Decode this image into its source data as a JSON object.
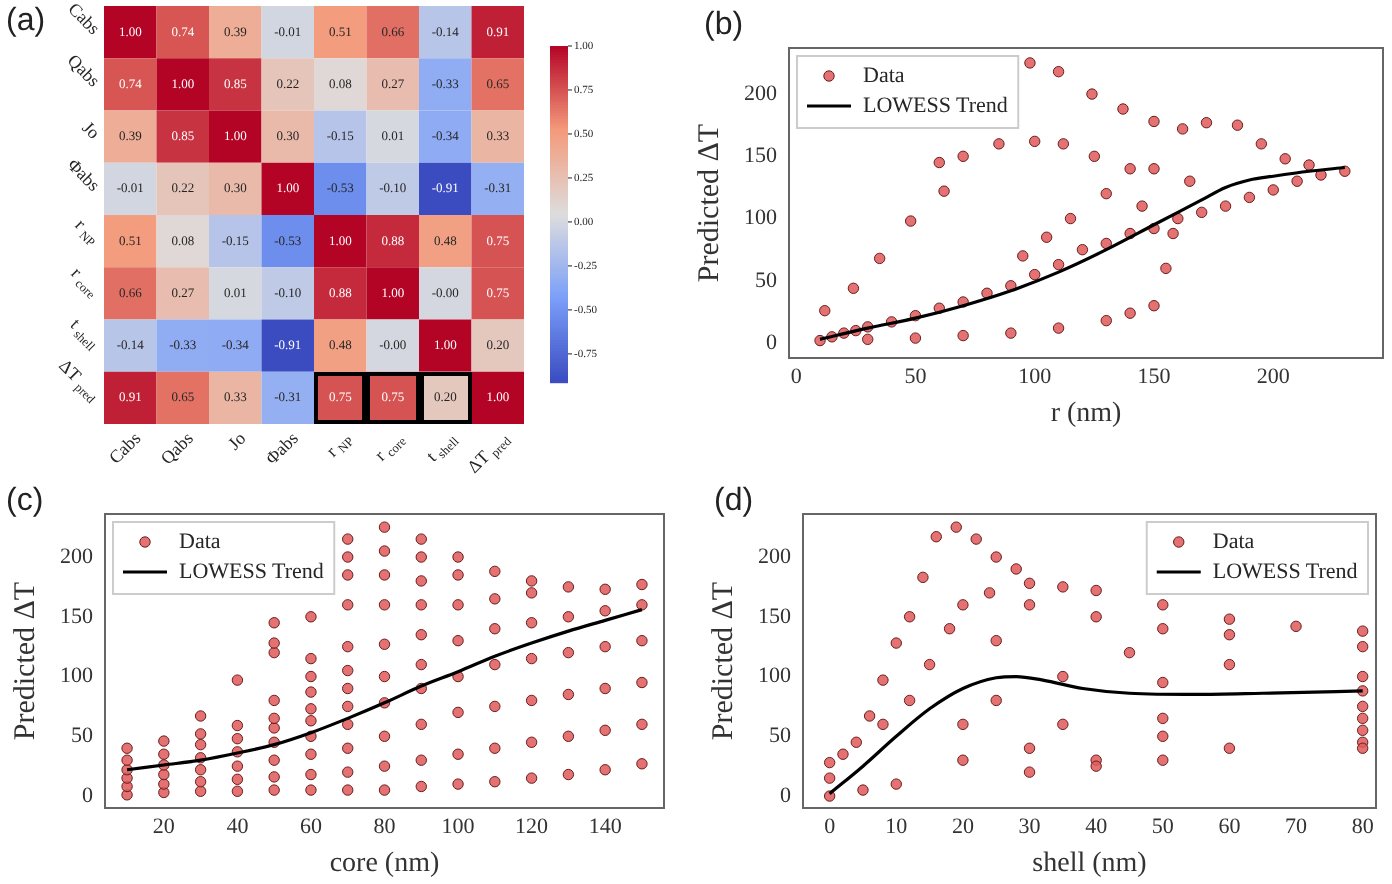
{
  "chart_data": [
    {
      "type": "heatmap",
      "annotations": [
        "(a)"
      ],
      "categories": [
        "Cabs",
        "Qabs",
        "Jo",
        "Φabs",
        "r$_{NP}$",
        "r$_{core}$",
        "t$_{shell}$",
        "ΔT$_{pred}$"
      ],
      "y_categories": [
        "Cabs",
        "Qabs",
        "Jo",
        "Φabs",
        "r$_{NP}$",
        "r$_{core}$",
        "t$_{shell}$",
        "ΔT$_{pred}$"
      ],
      "cells": [
        [
          1.0,
          0.74,
          0.39,
          -0.01,
          0.51,
          0.66,
          -0.14,
          0.91
        ],
        [
          0.74,
          1.0,
          0.85,
          0.22,
          0.08,
          0.27,
          -0.33,
          0.65
        ],
        [
          0.39,
          0.85,
          1.0,
          0.3,
          -0.15,
          0.01,
          -0.34,
          0.33
        ],
        [
          -0.01,
          0.22,
          0.3,
          1.0,
          -0.53,
          -0.1,
          -0.91,
          -0.31
        ],
        [
          0.51,
          0.08,
          -0.15,
          -0.53,
          1.0,
          0.88,
          0.48,
          0.75
        ],
        [
          0.66,
          0.27,
          0.01,
          -0.1,
          0.88,
          1.0,
          0.0,
          0.75
        ],
        [
          -0.14,
          -0.33,
          -0.34,
          -0.91,
          0.48,
          0.0,
          1.0,
          0.2
        ],
        [
          0.91,
          0.65,
          0.33,
          -0.31,
          0.75,
          0.75,
          0.2,
          1.0
        ]
      ],
      "cell_labels": [
        [
          "1.00",
          "0.74",
          "0.39",
          "-0.01",
          "0.51",
          "0.66",
          "-0.14",
          "0.91"
        ],
        [
          "0.74",
          "1.00",
          "0.85",
          "0.22",
          "0.08",
          "0.27",
          "-0.33",
          "0.65"
        ],
        [
          "0.39",
          "0.85",
          "1.00",
          "0.30",
          "-0.15",
          "0.01",
          "-0.34",
          "0.33"
        ],
        [
          "-0.01",
          "0.22",
          "0.30",
          "1.00",
          "-0.53",
          "-0.10",
          "-0.91",
          "-0.31"
        ],
        [
          "0.51",
          "0.08",
          "-0.15",
          "-0.53",
          "1.00",
          "0.88",
          "0.48",
          "0.75"
        ],
        [
          "0.66",
          "0.27",
          "0.01",
          "-0.10",
          "0.88",
          "1.00",
          "-0.00",
          "0.75"
        ],
        [
          "-0.14",
          "-0.33",
          "-0.34",
          "-0.91",
          "0.48",
          "-0.00",
          "1.00",
          "0.20"
        ],
        [
          "0.91",
          "0.65",
          "0.33",
          "-0.31",
          "0.75",
          "0.75",
          "0.20",
          "1.00"
        ]
      ],
      "clim": [
        -0.91,
        1
      ],
      "cticks": [
        {
          "value": 1,
          "label": "1.00"
        },
        {
          "value": 0.75,
          "label": "0.75"
        },
        {
          "value": 0.5,
          "label": "0.50"
        },
        {
          "value": 0.25,
          "label": "0.25"
        },
        {
          "value": 0,
          "label": "0.00"
        },
        {
          "value": -0.25,
          "label": "-0.25"
        },
        {
          "value": -0.5,
          "label": "-0.50"
        },
        {
          "value": -0.75,
          "label": "-0.75"
        }
      ]
    },
    {
      "type": "scatter",
      "annotations": [
        "(b)"
      ],
      "xlabel": "r (nm)",
      "ylabel": "Predicted ΔT",
      "xlim": [
        -3,
        246
      ],
      "ylim": [
        -12,
        237
      ],
      "xticks": [
        0,
        50,
        100,
        150,
        200
      ],
      "yticks": [
        0,
        50,
        100,
        150,
        200
      ],
      "legend": "top left",
      "series": [
        {
          "name": "Data",
          "marker": "circle",
          "color": "#e05c5c",
          "x": [
            10,
            15,
            20,
            25,
            30,
            40,
            50,
            60,
            70,
            80,
            90,
            100,
            110,
            120,
            130,
            140,
            150,
            160,
            170,
            180,
            190,
            200,
            210,
            220,
            230,
            98,
            110,
            124,
            137,
            150,
            162,
            172,
            185,
            195,
            205,
            215,
            12,
            24,
            35,
            48,
            60,
            62,
            70,
            85,
            100,
            112,
            125,
            140,
            150,
            165,
            115,
            105,
            95,
            130,
            145,
            30,
            50,
            70,
            90,
            110,
            130,
            140,
            150,
            155,
            158
          ],
          "values": [
            2,
            5,
            8,
            10,
            13,
            17,
            22,
            28,
            33,
            40,
            46,
            55,
            63,
            75,
            80,
            88,
            92,
            100,
            105,
            110,
            117,
            123,
            130,
            135,
            138,
            225,
            218,
            200,
            188,
            178,
            172,
            177,
            175,
            160,
            148,
            143,
            26,
            44,
            68,
            98,
            145,
            122,
            150,
            160,
            162,
            160,
            150,
            140,
            140,
            130,
            100,
            85,
            70,
            120,
            110,
            3,
            4,
            6,
            8,
            12,
            18,
            24,
            30,
            60,
            88
          ]
        },
        {
          "name": "LOWESS Trend",
          "type": "line",
          "color": "#000000",
          "x": [
            10,
            30,
            50,
            70,
            90,
            110,
            130,
            150,
            160,
            170,
            180,
            190,
            200,
            215,
            230
          ],
          "values": [
            3,
            12,
            20,
            30,
            42,
            57,
            75,
            95,
            105,
            115,
            125,
            131,
            134,
            138,
            141
          ]
        }
      ]
    },
    {
      "type": "scatter",
      "annotations": [
        "(c)"
      ],
      "xlabel": "core (nm)",
      "ylabel": "Predicted ΔT",
      "xlim": [
        4,
        156
      ],
      "ylim": [
        -10,
        236
      ],
      "xticks": [
        20,
        40,
        60,
        80,
        100,
        120,
        140
      ],
      "yticks": [
        0,
        50,
        100,
        150,
        200
      ],
      "legend": "top left",
      "series": [
        {
          "name": "Data",
          "marker": "circle",
          "color": "#e05c5c",
          "x": [
            10,
            10,
            10,
            10,
            10,
            10,
            20,
            20,
            20,
            20,
            20,
            20,
            30,
            30,
            30,
            30,
            30,
            30,
            30,
            40,
            40,
            40,
            40,
            40,
            40,
            40,
            50,
            50,
            50,
            50,
            50,
            50,
            50,
            50,
            50,
            50,
            60,
            60,
            60,
            60,
            60,
            60,
            60,
            60,
            60,
            60,
            70,
            70,
            70,
            70,
            70,
            70,
            70,
            70,
            70,
            70,
            70,
            70,
            80,
            80,
            80,
            80,
            80,
            80,
            80,
            80,
            80,
            80,
            90,
            90,
            90,
            90,
            90,
            90,
            90,
            90,
            90,
            90,
            100,
            100,
            100,
            100,
            100,
            100,
            100,
            100,
            110,
            110,
            110,
            110,
            110,
            110,
            110,
            120,
            120,
            120,
            120,
            120,
            120,
            120,
            130,
            130,
            130,
            130,
            130,
            130,
            140,
            140,
            140,
            140,
            140,
            140,
            150,
            150,
            150,
            150,
            150,
            150
          ],
          "values": [
            1,
            8,
            15,
            22,
            30,
            40,
            3,
            10,
            18,
            26,
            35,
            46,
            4,
            12,
            22,
            32,
            43,
            52,
            67,
            4,
            14,
            25,
            37,
            48,
            59,
            97,
            5,
            16,
            30,
            45,
            57,
            65,
            80,
            120,
            128,
            145,
            5,
            18,
            35,
            50,
            63,
            73,
            87,
            100,
            115,
            150,
            5,
            20,
            40,
            60,
            75,
            90,
            105,
            125,
            160,
            185,
            200,
            215,
            5,
            25,
            50,
            78,
            100,
            127,
            160,
            185,
            205,
            225,
            8,
            30,
            60,
            90,
            110,
            135,
            160,
            180,
            200,
            215,
            10,
            35,
            70,
            100,
            130,
            160,
            185,
            200,
            12,
            40,
            75,
            110,
            140,
            165,
            188,
            15,
            45,
            80,
            115,
            145,
            170,
            180,
            18,
            50,
            85,
            120,
            150,
            175,
            22,
            55,
            90,
            125,
            155,
            173,
            27,
            60,
            95,
            130,
            160,
            177
          ]
        },
        {
          "name": "LOWESS Trend",
          "type": "line",
          "color": "#000000",
          "x": [
            10,
            20,
            30,
            40,
            50,
            60,
            70,
            80,
            90,
            100,
            110,
            120,
            130,
            140,
            150
          ],
          "values": [
            22,
            26,
            30,
            36,
            43,
            53,
            65,
            78,
            92,
            104,
            117,
            128,
            138,
            147,
            156
          ]
        }
      ]
    },
    {
      "type": "scatter",
      "annotations": [
        "(d)"
      ],
      "xlabel": "shell (nm)",
      "ylabel": "Predicted ΔT",
      "xlim": [
        -4,
        82
      ],
      "ylim": [
        -10,
        236
      ],
      "xticks": [
        0,
        10,
        20,
        30,
        40,
        50,
        60,
        70,
        80
      ],
      "yticks": [
        0,
        50,
        100,
        150,
        200
      ],
      "legend": "top right",
      "series": [
        {
          "name": "Data",
          "marker": "circle",
          "color": "#e05c5c",
          "x": [
            0,
            0,
            0,
            2,
            4,
            6,
            8,
            10,
            12,
            14,
            16,
            19,
            22,
            25,
            28,
            30,
            35,
            40,
            50,
            60,
            70,
            80,
            40,
            50,
            60,
            80,
            30,
            45,
            60,
            80,
            25,
            35,
            50,
            80,
            25,
            35,
            50,
            80,
            20,
            30,
            50,
            80,
            20,
            40,
            60,
            80,
            10,
            30,
            50,
            80,
            5,
            40,
            80,
            15,
            18,
            20,
            24,
            12,
            8
          ],
          "values": [
            0,
            28,
            15,
            35,
            45,
            67,
            97,
            128,
            150,
            183,
            217,
            225,
            215,
            200,
            190,
            178,
            175,
            172,
            160,
            148,
            142,
            138,
            150,
            140,
            135,
            125,
            160,
            120,
            110,
            100,
            130,
            100,
            95,
            88,
            80,
            60,
            65,
            75,
            60,
            40,
            50,
            65,
            30,
            30,
            40,
            55,
            10,
            20,
            30,
            45,
            5,
            25,
            40,
            110,
            140,
            160,
            170,
            80,
            60
          ]
        },
        {
          "name": "LOWESS Trend",
          "type": "line",
          "color": "#000000",
          "x": [
            0,
            5,
            10,
            15,
            20,
            25,
            28,
            32,
            38,
            45,
            55,
            65,
            80
          ],
          "values": [
            2,
            25,
            50,
            73,
            90,
            99,
            100,
            97,
            90,
            86,
            85,
            86,
            88
          ]
        }
      ]
    }
  ]
}
